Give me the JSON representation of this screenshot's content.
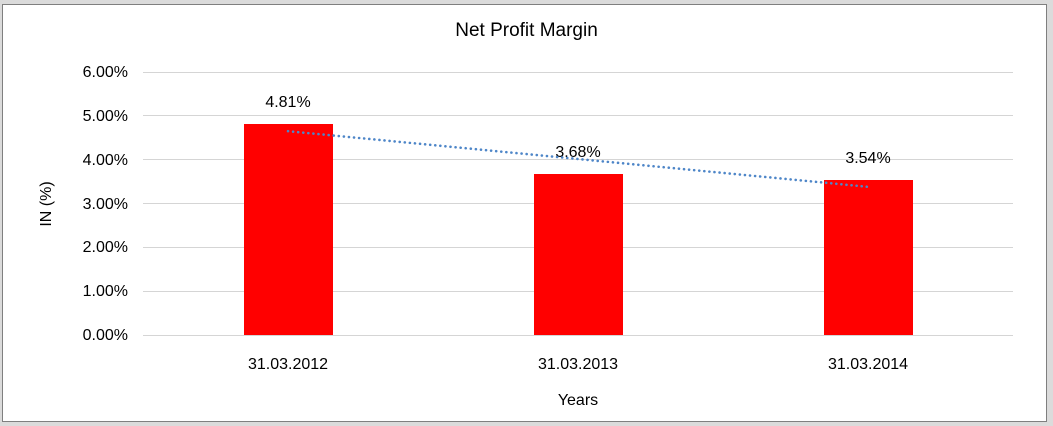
{
  "chart_data": {
    "type": "bar",
    "title": "Net Profit Margin",
    "xlabel": "Years",
    "ylabel": "IN (%)",
    "categories": [
      "31.03.2012",
      "31.03.2013",
      "31.03.2014"
    ],
    "values": [
      4.81,
      3.68,
      3.54
    ],
    "data_labels": [
      "4.81%",
      "3.68%",
      "3.54%"
    ],
    "yticks": [
      "0.00%",
      "1.00%",
      "2.00%",
      "3.00%",
      "4.00%",
      "5.00%",
      "6.00%"
    ],
    "ylim": [
      0,
      6
    ],
    "ytick_step": 1,
    "grid": "horizontal",
    "legend": "none",
    "bar_color": "#FF0000",
    "gridline_color": "#D5D5D5",
    "trendline": {
      "type": "linear",
      "style": "dotted",
      "color": "#4E86C8",
      "start_value": 4.65,
      "end_value": 3.38
    }
  }
}
